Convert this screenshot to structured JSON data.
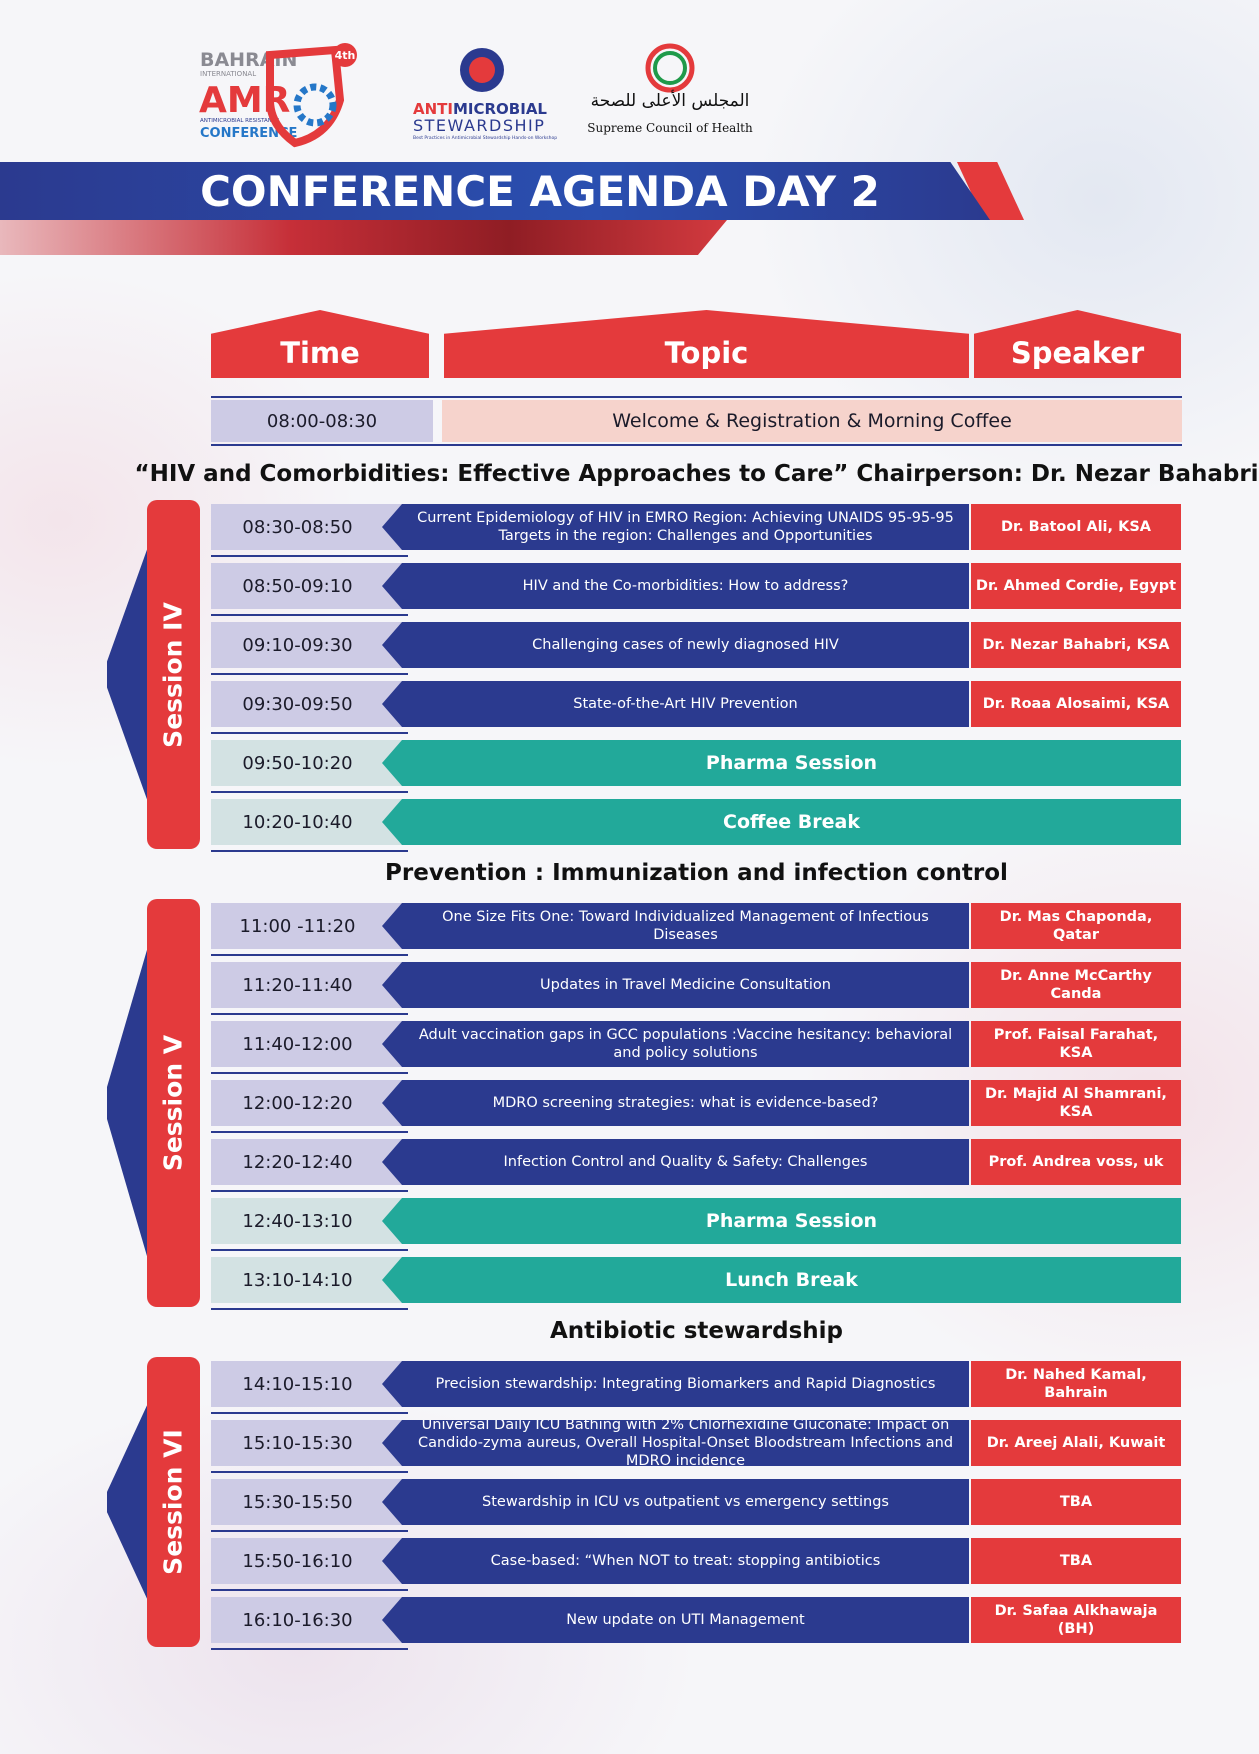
{
  "logos": {
    "amr": {
      "country": "BAHRAIN",
      "intl": "INTERNATIONAL",
      "acronym": "AMR",
      "subtitle": "ANTIMICROBIAL RESISTANCE",
      "event": "CONFERENCE",
      "edition": "4th"
    },
    "stewardship": {
      "anti": "ANTI",
      "microbial": "MICROBIAL",
      "stewardship": "STEWARDSHIP",
      "tagline": "Best Practices in Antimicrobial Stewardship Hands-on Workshop"
    },
    "council": {
      "arabic": "المجلس الأعلى للصحة",
      "english": "Supreme Council of Health"
    }
  },
  "header": {
    "title": "CONFERENCE AGENDA DAY 2"
  },
  "columns": [
    "Time",
    "Topic",
    "Speaker"
  ],
  "welcome": {
    "time": "08:00-08:30",
    "topic": "Welcome & Registration & Morning Coffee"
  },
  "sessions": [
    {
      "name": "Session IV",
      "heading": "“HIV and Comorbidities: Effective Approaches to Care” Chairperson: Dr. Nezar Bahabri",
      "rows": [
        {
          "time": "08:30-08:50",
          "topic": "Current Epidemiology of HIV in EMRO Region: Achieving UNAIDS 95-95-95 Targets in the region: Challenges and Opportunities",
          "speaker": "Dr. Batool Ali, KSA"
        },
        {
          "time": "08:50-09:10",
          "topic": "HIV and the Co-morbidities: How to address?",
          "speaker": "Dr. Ahmed Cordie, Egypt"
        },
        {
          "time": "09:10-09:30",
          "topic": "Challenging cases of newly diagnosed HIV",
          "speaker": "Dr. Nezar Bahabri, KSA"
        },
        {
          "time": "09:30-09:50",
          "topic": "State-of-the-Art HIV Prevention",
          "speaker": "Dr. Roaa Alosaimi, KSA"
        },
        {
          "time": "09:50-10:20",
          "topic": "Pharma Session"
        },
        {
          "time": "10:20-10:40",
          "topic": "Coffee Break"
        }
      ]
    },
    {
      "name": "Session V",
      "heading": "Prevention : Immunization and infection control",
      "rows": [
        {
          "time": "11:00 -11:20",
          "topic": "One Size Fits One: Toward Individualized Management of Infectious Diseases",
          "speaker": "Dr. Mas Chaponda, Qatar"
        },
        {
          "time": "11:20-11:40",
          "topic": "Updates in Travel Medicine Consultation",
          "speaker": "Dr. Anne McCarthy Canda"
        },
        {
          "time": "11:40-12:00",
          "topic": "Adult vaccination gaps in GCC populations :Vaccine hesitancy: behavioral and policy solutions",
          "speaker": "Prof. Faisal Farahat, KSA"
        },
        {
          "time": "12:00-12:20",
          "topic": "MDRO screening strategies: what is evidence-based?",
          "speaker": "Dr. Majid Al Shamrani, KSA"
        },
        {
          "time": "12:20-12:40",
          "topic": "Infection Control and Quality & Safety: Challenges",
          "speaker": "Prof. Andrea voss, uk"
        },
        {
          "time": "12:40-13:10",
          "topic": "Pharma Session"
        },
        {
          "time": "13:10-14:10",
          "topic": "Lunch Break"
        }
      ]
    },
    {
      "name": "Session VI",
      "heading": "Antibiotic stewardship",
      "rows": [
        {
          "time": "14:10-15:10",
          "topic": "Precision stewardship: Integrating Biomarkers and Rapid Diagnostics",
          "speaker": "Dr. Nahed Kamal, Bahrain"
        },
        {
          "time": "15:10-15:30",
          "topic": "Universal Daily ICU Bathing with 2% Chlorhexidine Gluconate: Impact on Candido-zyma aureus, Overall Hospital-Onset Bloodstream Infections and MDRO incidence",
          "speaker": "Dr. Areej Alali, Kuwait"
        },
        {
          "time": "15:30-15:50",
          "topic": "Stewardship in ICU vs outpatient vs emergency settings",
          "speaker": "TBA"
        },
        {
          "time": "15:50-16:10",
          "topic": "Case-based: “When NOT to treat: stopping antibiotics",
          "speaker": "TBA"
        },
        {
          "time": "16:10-16:30",
          "topic": "New update on UTI Management",
          "speaker": "Dr. Safaa Alkhawaja (BH)"
        }
      ]
    }
  ]
}
